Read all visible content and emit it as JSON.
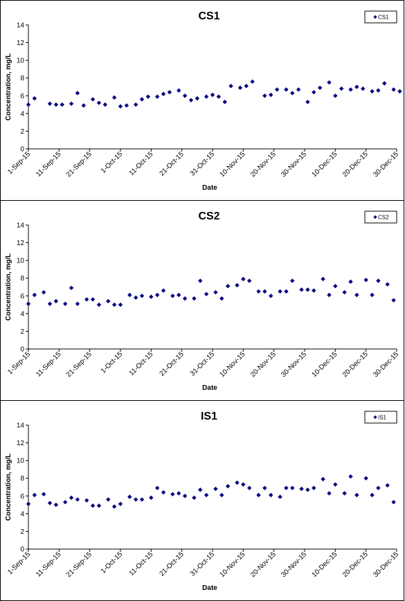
{
  "chart_data": [
    {
      "type": "scatter",
      "title": "CS1",
      "xlabel": "Date",
      "ylabel": "Concentration, mg/L",
      "ylim": [
        0,
        14
      ],
      "yticks": [
        "0",
        "2",
        "4",
        "6",
        "8",
        "10",
        "12",
        "14"
      ],
      "xlim": [
        "2015-09-01",
        "2015-12-30"
      ],
      "xticks": [
        "1-Sep-15",
        "11-Sep-15",
        "21-Sep-15",
        "1-Oct-15",
        "11-Oct-15",
        "21-Oct-15",
        "31-Oct-15",
        "10-Nov-15",
        "20-Nov-15",
        "30-Nov-15",
        "10-Dec-15",
        "20-Dec-15",
        "30-Dec-15"
      ],
      "grid": false,
      "legend": "top-right",
      "marker_color": "#000080",
      "series": [
        {
          "name": "CS1",
          "x": [
            "2015-09-01",
            "2015-09-03",
            "2015-09-08",
            "2015-09-10",
            "2015-09-12",
            "2015-09-15",
            "2015-09-17",
            "2015-09-19",
            "2015-09-22",
            "2015-09-24",
            "2015-09-26",
            "2015-09-29",
            "2015-10-01",
            "2015-10-03",
            "2015-10-06",
            "2015-10-08",
            "2015-10-10",
            "2015-10-13",
            "2015-10-15",
            "2015-10-17",
            "2015-10-20",
            "2015-10-22",
            "2015-10-24",
            "2015-10-26",
            "2015-10-29",
            "2015-10-31",
            "2015-11-02",
            "2015-11-04",
            "2015-11-06",
            "2015-11-09",
            "2015-11-11",
            "2015-11-13",
            "2015-11-17",
            "2015-11-19",
            "2015-11-21",
            "2015-11-24",
            "2015-11-26",
            "2015-11-28",
            "2015-12-01",
            "2015-12-03",
            "2015-12-05",
            "2015-12-08",
            "2015-12-10",
            "2015-12-12",
            "2015-12-15",
            "2015-12-17",
            "2015-12-19",
            "2015-12-22",
            "2015-12-24",
            "2015-12-26",
            "2015-12-29",
            "2015-12-31"
          ],
          "y": [
            5.0,
            5.7,
            5.1,
            5.0,
            5.0,
            5.1,
            6.3,
            4.9,
            5.6,
            5.2,
            5.0,
            5.8,
            4.8,
            4.9,
            5.0,
            5.6,
            5.9,
            5.9,
            6.2,
            6.4,
            6.6,
            6.0,
            5.5,
            5.7,
            5.9,
            6.1,
            5.9,
            5.3,
            7.1,
            6.9,
            7.1,
            7.6,
            6.0,
            6.1,
            6.7,
            6.7,
            6.3,
            6.7,
            5.3,
            6.4,
            6.9,
            7.5,
            6.0,
            6.8,
            6.7,
            7.0,
            6.8,
            6.5,
            6.6,
            7.4,
            6.7,
            6.5
          ]
        }
      ]
    },
    {
      "type": "scatter",
      "title": "CS2",
      "xlabel": "Date",
      "ylabel": "Concentration, mg/L",
      "ylim": [
        0,
        14
      ],
      "yticks": [
        "0",
        "2",
        "4",
        "6",
        "8",
        "10",
        "12",
        "14"
      ],
      "xlim": [
        "2015-09-01",
        "2015-12-30"
      ],
      "xticks": [
        "1-Sep-15",
        "11-Sep-15",
        "21-Sep-15",
        "1-Oct-15",
        "11-Oct-15",
        "21-Oct-15",
        "31-Oct-15",
        "10-Nov-15",
        "20-Nov-15",
        "30-Nov-15",
        "10-Dec-15",
        "20-Dec-15",
        "30-Dec-15"
      ],
      "grid": false,
      "legend": "top-right",
      "marker_color": "#000080",
      "series": [
        {
          "name": "CS2",
          "x": [
            "2015-09-01",
            "2015-09-03",
            "2015-09-06",
            "2015-09-08",
            "2015-09-10",
            "2015-09-13",
            "2015-09-15",
            "2015-09-17",
            "2015-09-20",
            "2015-09-22",
            "2015-09-24",
            "2015-09-27",
            "2015-09-29",
            "2015-10-01",
            "2015-10-04",
            "2015-10-06",
            "2015-10-08",
            "2015-10-11",
            "2015-10-13",
            "2015-10-15",
            "2015-10-18",
            "2015-10-20",
            "2015-10-22",
            "2015-10-25",
            "2015-10-27",
            "2015-10-29",
            "2015-11-01",
            "2015-11-03",
            "2015-11-05",
            "2015-11-08",
            "2015-11-10",
            "2015-11-12",
            "2015-11-15",
            "2015-11-17",
            "2015-11-19",
            "2015-11-22",
            "2015-11-24",
            "2015-11-26",
            "2015-11-29",
            "2015-12-01",
            "2015-12-03",
            "2015-12-06",
            "2015-12-08",
            "2015-12-10",
            "2015-12-13",
            "2015-12-15",
            "2015-12-17",
            "2015-12-20",
            "2015-12-22",
            "2015-12-24",
            "2015-12-27",
            "2015-12-29"
          ],
          "y": [
            5.1,
            6.1,
            6.4,
            5.1,
            5.4,
            5.1,
            6.9,
            5.1,
            5.6,
            5.6,
            5.0,
            5.4,
            5.0,
            5.0,
            6.1,
            5.8,
            6.0,
            5.9,
            6.1,
            6.6,
            6.0,
            6.1,
            5.7,
            5.7,
            7.7,
            6.2,
            6.4,
            5.7,
            7.1,
            7.2,
            7.9,
            7.7,
            6.5,
            6.5,
            6.0,
            6.5,
            6.5,
            7.7,
            6.7,
            6.7,
            6.6,
            7.9,
            6.1,
            7.1,
            6.4,
            7.6,
            6.1,
            7.8,
            6.1,
            7.7,
            7.3,
            5.5
          ]
        }
      ]
    },
    {
      "type": "scatter",
      "title": "IS1",
      "xlabel": "Date",
      "ylabel": "Concentration, mg/L",
      "ylim": [
        0,
        14
      ],
      "yticks": [
        "0",
        "2",
        "4",
        "6",
        "8",
        "10",
        "12",
        "14"
      ],
      "xlim": [
        "2015-09-01",
        "2015-12-30"
      ],
      "xticks": [
        "1-Sep-15",
        "11-Sep-15",
        "21-Sep-15",
        "1-Oct-15",
        "11-Oct-15",
        "21-Oct-15",
        "31-Oct-15",
        "10-Nov-15",
        "20-Nov-15",
        "30-Nov-15",
        "10-Dec-15",
        "20-Dec-15",
        "30-Dec-15"
      ],
      "grid": false,
      "legend": "top-right",
      "marker_color": "#000080",
      "series": [
        {
          "name": "IS1",
          "x": [
            "2015-09-01",
            "2015-09-03",
            "2015-09-06",
            "2015-09-08",
            "2015-09-10",
            "2015-09-13",
            "2015-09-15",
            "2015-09-17",
            "2015-09-20",
            "2015-09-22",
            "2015-09-24",
            "2015-09-27",
            "2015-09-29",
            "2015-10-01",
            "2015-10-04",
            "2015-10-06",
            "2015-10-08",
            "2015-10-11",
            "2015-10-13",
            "2015-10-15",
            "2015-10-18",
            "2015-10-20",
            "2015-10-22",
            "2015-10-25",
            "2015-10-27",
            "2015-10-29",
            "2015-11-01",
            "2015-11-03",
            "2015-11-05",
            "2015-11-08",
            "2015-11-10",
            "2015-11-12",
            "2015-11-15",
            "2015-11-17",
            "2015-11-19",
            "2015-11-22",
            "2015-11-24",
            "2015-11-26",
            "2015-11-29",
            "2015-12-01",
            "2015-12-03",
            "2015-12-06",
            "2015-12-08",
            "2015-12-10",
            "2015-12-13",
            "2015-12-15",
            "2015-12-17",
            "2015-12-20",
            "2015-12-22",
            "2015-12-24",
            "2015-12-27",
            "2015-12-29"
          ],
          "y": [
            5.1,
            6.1,
            6.2,
            5.2,
            5.0,
            5.3,
            5.8,
            5.6,
            5.5,
            4.9,
            4.9,
            5.6,
            4.8,
            5.1,
            5.9,
            5.6,
            5.6,
            5.8,
            6.9,
            6.4,
            6.2,
            6.3,
            6.0,
            5.8,
            6.7,
            6.1,
            6.8,
            6.1,
            7.1,
            7.5,
            7.3,
            6.9,
            6.1,
            6.9,
            6.1,
            5.9,
            6.9,
            6.9,
            6.8,
            6.7,
            6.9,
            7.9,
            6.3,
            7.3,
            6.3,
            8.2,
            6.1,
            8.0,
            6.1,
            6.9,
            7.2,
            5.3
          ]
        }
      ]
    }
  ]
}
